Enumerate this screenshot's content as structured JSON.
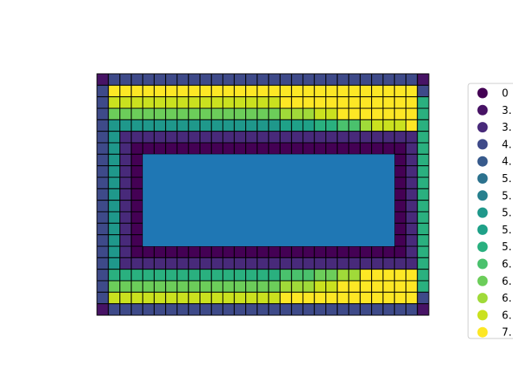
{
  "chart_data": {
    "type": "heatmap",
    "title": "",
    "xlabel": "",
    "ylabel": "",
    "grid_cols": 29,
    "grid_rows": 21,
    "hole": {
      "col_start": 4,
      "col_end": 25,
      "row_start": 7,
      "row_end": 14,
      "color": "#1f77b4"
    },
    "colormap": "viridis",
    "legend_position": "right",
    "legend": [
      {
        "label": "0",
        "color": "#440154"
      },
      {
        "label": "3.",
        "color": "#471365"
      },
      {
        "label": "3.",
        "color": "#482a7a"
      },
      {
        "label": "4.",
        "color": "#3e4a89"
      },
      {
        "label": "4.",
        "color": "#375a8c"
      },
      {
        "label": "5.",
        "color": "#2c728e"
      },
      {
        "label": "5.",
        "color": "#27808e"
      },
      {
        "label": "5.",
        "color": "#1f988b"
      },
      {
        "label": "5.",
        "color": "#1fa188"
      },
      {
        "label": "5.",
        "color": "#2ab07f"
      },
      {
        "label": "6.",
        "color": "#4ac16d"
      },
      {
        "label": "6.",
        "color": "#6ccd5a"
      },
      {
        "label": "6.",
        "color": "#a0da39"
      },
      {
        "label": "6.",
        "color": "#cae11f"
      },
      {
        "label": "7.",
        "color": "#fde725"
      }
    ]
  }
}
